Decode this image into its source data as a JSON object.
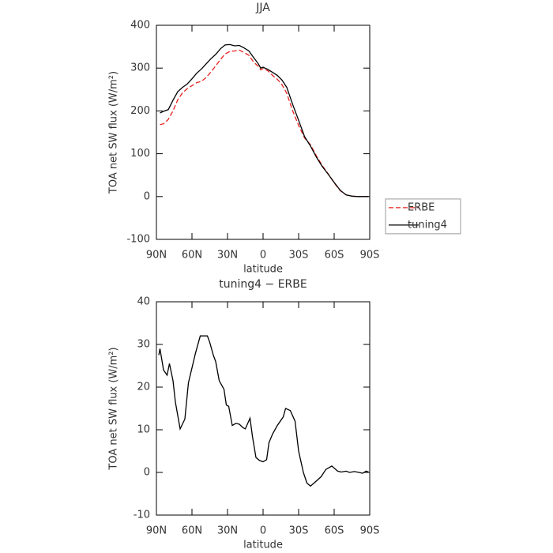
{
  "chart_data": [
    {
      "type": "line",
      "title": "JJA",
      "x_label": "latitude",
      "y_label": "TOA net SW flux (W/m²)",
      "x": [
        87,
        84,
        80,
        76,
        72,
        68,
        64,
        60,
        56,
        52,
        48,
        44,
        40,
        36,
        32,
        28,
        24,
        20,
        16,
        12,
        8,
        4,
        2,
        0,
        -4,
        -8,
        -12,
        -16,
        -20,
        -25,
        -30,
        -35,
        -40,
        -45,
        -50,
        -55,
        -60,
        -65,
        -70,
        -75,
        -80,
        -85,
        -89
      ],
      "series": [
        {
          "name": "ERBE",
          "color": "#e8201c",
          "line_style": "dashed",
          "values": [
            168,
            170,
            180,
            200,
            226,
            242,
            252,
            259,
            266,
            269,
            278,
            291,
            305,
            320,
            333,
            339,
            340,
            342,
            336,
            330,
            314,
            304,
            296,
            299,
            294,
            283,
            274,
            261,
            241,
            200,
            166,
            137,
            121,
            95,
            72,
            53,
            32,
            14,
            4,
            1,
            0,
            0,
            0
          ]
        },
        {
          "name": "tuning4",
          "color": "#000000",
          "line_style": "solid",
          "values": [
            195,
            199,
            203,
            225,
            245,
            255,
            263,
            275,
            288,
            298,
            310,
            322,
            332,
            345,
            354,
            355,
            352,
            353,
            347,
            340,
            325,
            310,
            300,
            302,
            297,
            290,
            283,
            272,
            255,
            215,
            178,
            140,
            118,
            92,
            70,
            52,
            33,
            15,
            4,
            1,
            0,
            0,
            0
          ]
        }
      ],
      "xlim": [
        90,
        -90
      ],
      "xticks": [
        {
          "value": 90,
          "label": "90N"
        },
        {
          "value": 60,
          "label": "60N"
        },
        {
          "value": 30,
          "label": "30N"
        },
        0,
        {
          "value": -30,
          "label": "30S"
        },
        {
          "value": -60,
          "label": "60S"
        },
        {
          "value": -90,
          "label": "90S"
        }
      ],
      "ylim": [
        -100,
        400
      ],
      "yticks": [
        -100,
        0,
        100,
        200,
        300,
        400
      ],
      "legend": "right"
    },
    {
      "type": "line",
      "title": "tuning4 − ERBE",
      "x_label": "latitude",
      "y_label": "TOA net SW flux (W/m²)",
      "x": [
        88,
        87,
        84,
        81,
        79,
        76,
        74,
        70,
        66,
        63,
        57,
        53,
        47,
        45,
        42,
        40,
        37,
        33,
        31,
        29,
        26,
        23,
        20,
        17,
        15,
        11,
        9,
        6,
        3,
        0,
        -3,
        -5,
        -8,
        -12,
        -17,
        -19,
        -23,
        -27,
        -30,
        -34,
        -37,
        -40,
        -43,
        -49,
        -53,
        -58,
        -63,
        -66,
        -70,
        -73,
        -77,
        -81,
        -84,
        -87,
        -89
      ],
      "series": [
        {
          "name": "tuning4 − ERBE",
          "color": "#000000",
          "line_style": "solid",
          "values": [
            27.5,
            29,
            24,
            22.8,
            25.5,
            21.5,
            16.5,
            10.2,
            12.5,
            21,
            28,
            32,
            32,
            30.5,
            27.5,
            26,
            21.5,
            19.5,
            15.8,
            15.5,
            11,
            11.5,
            11.3,
            10.5,
            10.2,
            12.7,
            8.5,
            3.5,
            2.8,
            2.5,
            3,
            7,
            9,
            11,
            13,
            15,
            14.5,
            12,
            5,
            0,
            -2.5,
            -3.2,
            -2.5,
            -1,
            0.7,
            1.5,
            0.3,
            0.1,
            0.3,
            0,
            0.2,
            0,
            -0.2,
            0.3,
            0.1
          ]
        }
      ],
      "xlim": [
        90,
        -90
      ],
      "xticks": [
        {
          "value": 90,
          "label": "90N"
        },
        {
          "value": 60,
          "label": "60N"
        },
        {
          "value": 30,
          "label": "30N"
        },
        0,
        {
          "value": -30,
          "label": "30S"
        },
        {
          "value": -60,
          "label": "60S"
        },
        {
          "value": -90,
          "label": "90S"
        }
      ],
      "ylim": [
        -10,
        40
      ],
      "yticks": [
        -10,
        0,
        10,
        20,
        30,
        40
      ],
      "legend": "none"
    }
  ]
}
